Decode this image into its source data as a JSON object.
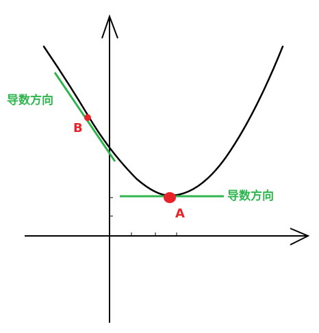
{
  "labels": {
    "tangent_left": "导数方向",
    "tangent_right": "导数方向",
    "point_b": "B",
    "point_a": "A"
  },
  "colors": {
    "curve": "#000000",
    "axes": "#000000",
    "tangent": "#2fb54e",
    "point": "#e8232a",
    "tangent_label": "#2fb54e",
    "point_label": "#e8232a"
  },
  "icons": {
    "x_axis_arrow": "arrowhead-right",
    "y_axis_arrow": "arrowhead-up"
  }
}
